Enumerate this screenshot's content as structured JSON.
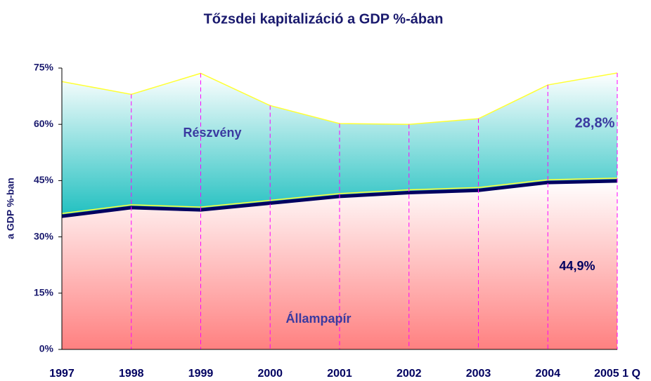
{
  "chart_data": {
    "type": "stacked_area",
    "title": "Tőzsdei kapitalizáció a GDP %-ában",
    "y_label": "a GDP %-ban",
    "categories": [
      "1997",
      "1998",
      "1999",
      "2000",
      "2001",
      "2002",
      "2003",
      "2004",
      "2005 1 Q"
    ],
    "series": [
      {
        "name": "Állampapír",
        "color": "#ff8080",
        "line_color": "#000060",
        "values": [
          35.5,
          37.8,
          37.2,
          39.0,
          40.8,
          41.8,
          42.4,
          44.5,
          44.9
        ],
        "value_labels": [
          null,
          null,
          null,
          null,
          null,
          null,
          null,
          null,
          "44,9%"
        ]
      },
      {
        "name": "Részvény",
        "color": "#20c0c0",
        "line_color": "#ffff33",
        "values": [
          35.9,
          30.2,
          36.4,
          26.0,
          19.4,
          18.2,
          19.1,
          26.0,
          28.8
        ],
        "value_labels": [
          null,
          null,
          null,
          null,
          null,
          null,
          null,
          null,
          "28,8%"
        ]
      }
    ],
    "ylim": [
      0,
      75
    ],
    "yticks": [
      {
        "value": 0,
        "label": "0%"
      },
      {
        "value": 15,
        "label": "15%"
      },
      {
        "value": 30,
        "label": "30%"
      },
      {
        "value": 45,
        "label": "45%"
      },
      {
        "value": 60,
        "label": "60%"
      },
      {
        "value": 75,
        "label": "75%"
      }
    ],
    "grid": true,
    "grid_color": "#ff00ff"
  }
}
